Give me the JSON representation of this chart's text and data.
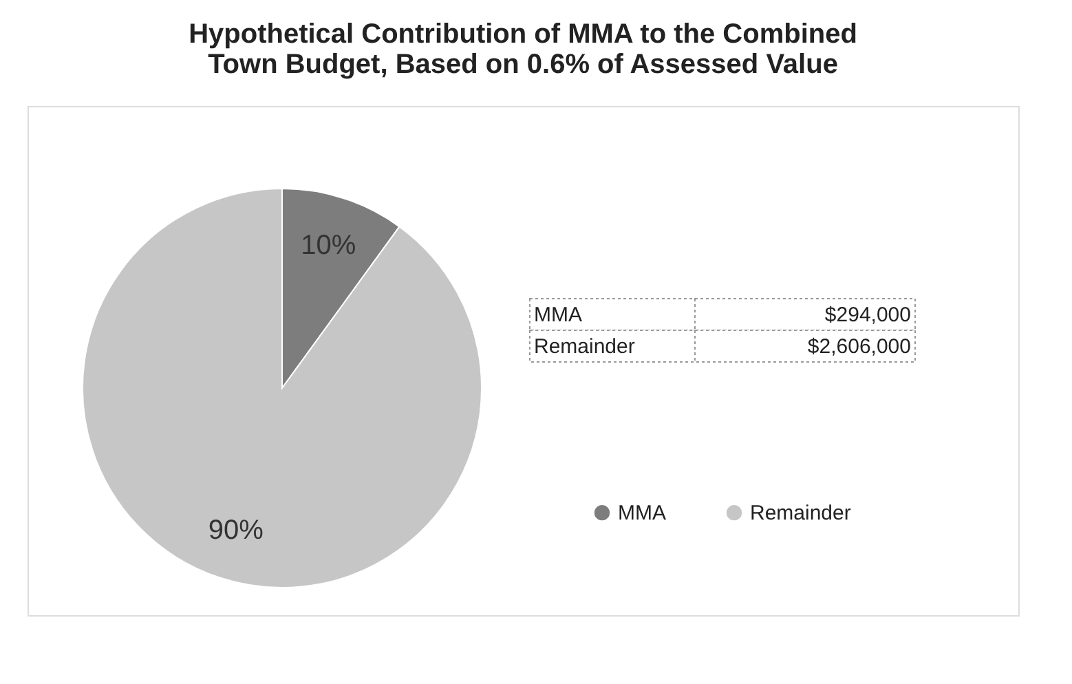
{
  "chart_data": {
    "type": "pie",
    "title": [
      "Hypothetical Contribution of MMA to the Combined",
      "Town Budget, Based on 0.6% of Assessed Value"
    ],
    "categories": [
      "MMA",
      "Remainder"
    ],
    "values": [
      10,
      90
    ],
    "value_labels": [
      "10%",
      "90%"
    ],
    "colors": [
      "#7d7d7d",
      "#c6c6c6"
    ],
    "annotations": [
      "$294,000",
      "$2,606,000"
    ],
    "legend": "right"
  }
}
